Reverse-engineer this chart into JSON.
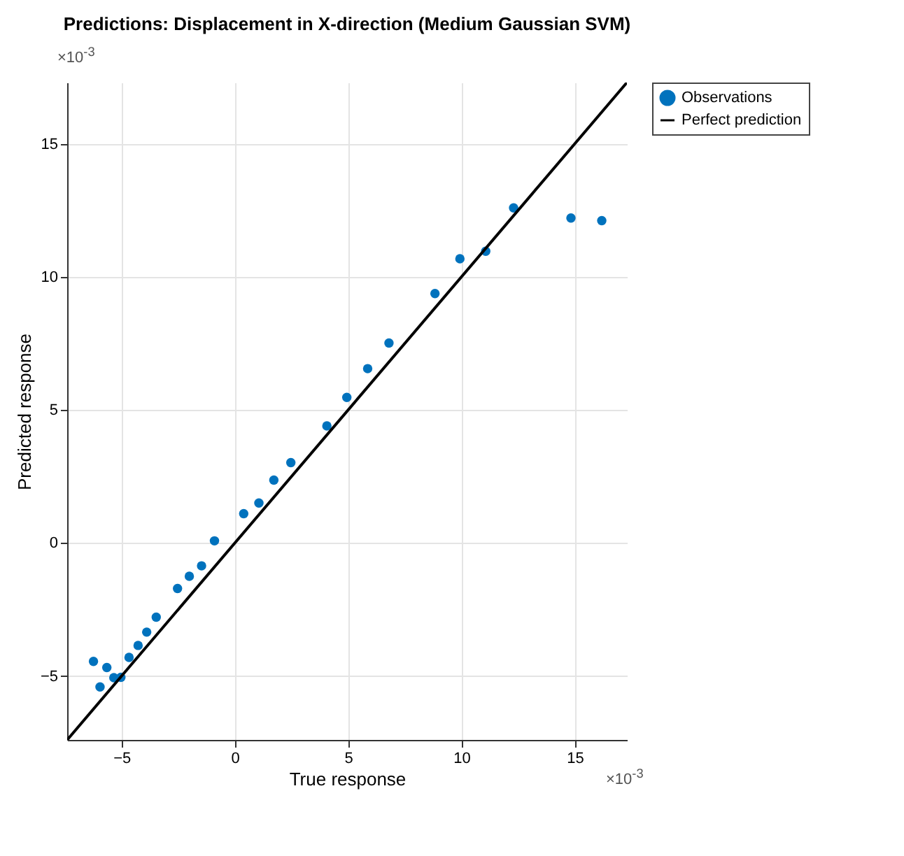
{
  "chart_data": {
    "type": "scatter",
    "title": "Predictions: Displacement in X-direction (Medium Gaussian SVM)",
    "xlabel": "True response",
    "ylabel": "Predicted response",
    "annotations": [
      "×10$^{-3}$",
      "×10$^{-3}$"
    ],
    "xlim": [
      -7.4,
      17.3
    ],
    "ylim": [
      -7.4,
      17.3
    ],
    "xticks": [
      -5,
      0,
      5,
      10,
      15
    ],
    "yticks": [
      -5,
      0,
      5,
      10,
      15
    ],
    "grid": true,
    "legend": "top right",
    "series": [
      {
        "name": "Observations",
        "type": "scatter",
        "marker": "circle",
        "color": "#0072bd",
        "x": [
          -6.24,
          -5.95,
          -5.65,
          -5.34,
          -5.03,
          -4.67,
          -4.27,
          -3.89,
          -3.47,
          -2.53,
          -2.01,
          -1.47,
          -0.9,
          0.39,
          1.06,
          1.72,
          2.47,
          4.06,
          4.94,
          5.86,
          6.8,
          8.83,
          9.93,
          11.07,
          12.3,
          14.83,
          16.19
        ],
        "values": [
          -4.45,
          -5.41,
          -4.68,
          -5.06,
          -5.05,
          -4.3,
          -3.85,
          -3.35,
          -2.79,
          -1.71,
          -1.25,
          -0.86,
          0.08,
          1.1,
          1.5,
          2.36,
          3.02,
          4.4,
          5.47,
          6.55,
          7.51,
          9.37,
          10.68,
          10.96,
          12.59,
          12.21,
          12.11
        ]
      },
      {
        "name": "Perfect prediction",
        "type": "line",
        "line_style": "solid",
        "color": "#000000",
        "x": [
          -7.4,
          17.3
        ],
        "values": [
          -7.4,
          17.3
        ]
      }
    ]
  }
}
